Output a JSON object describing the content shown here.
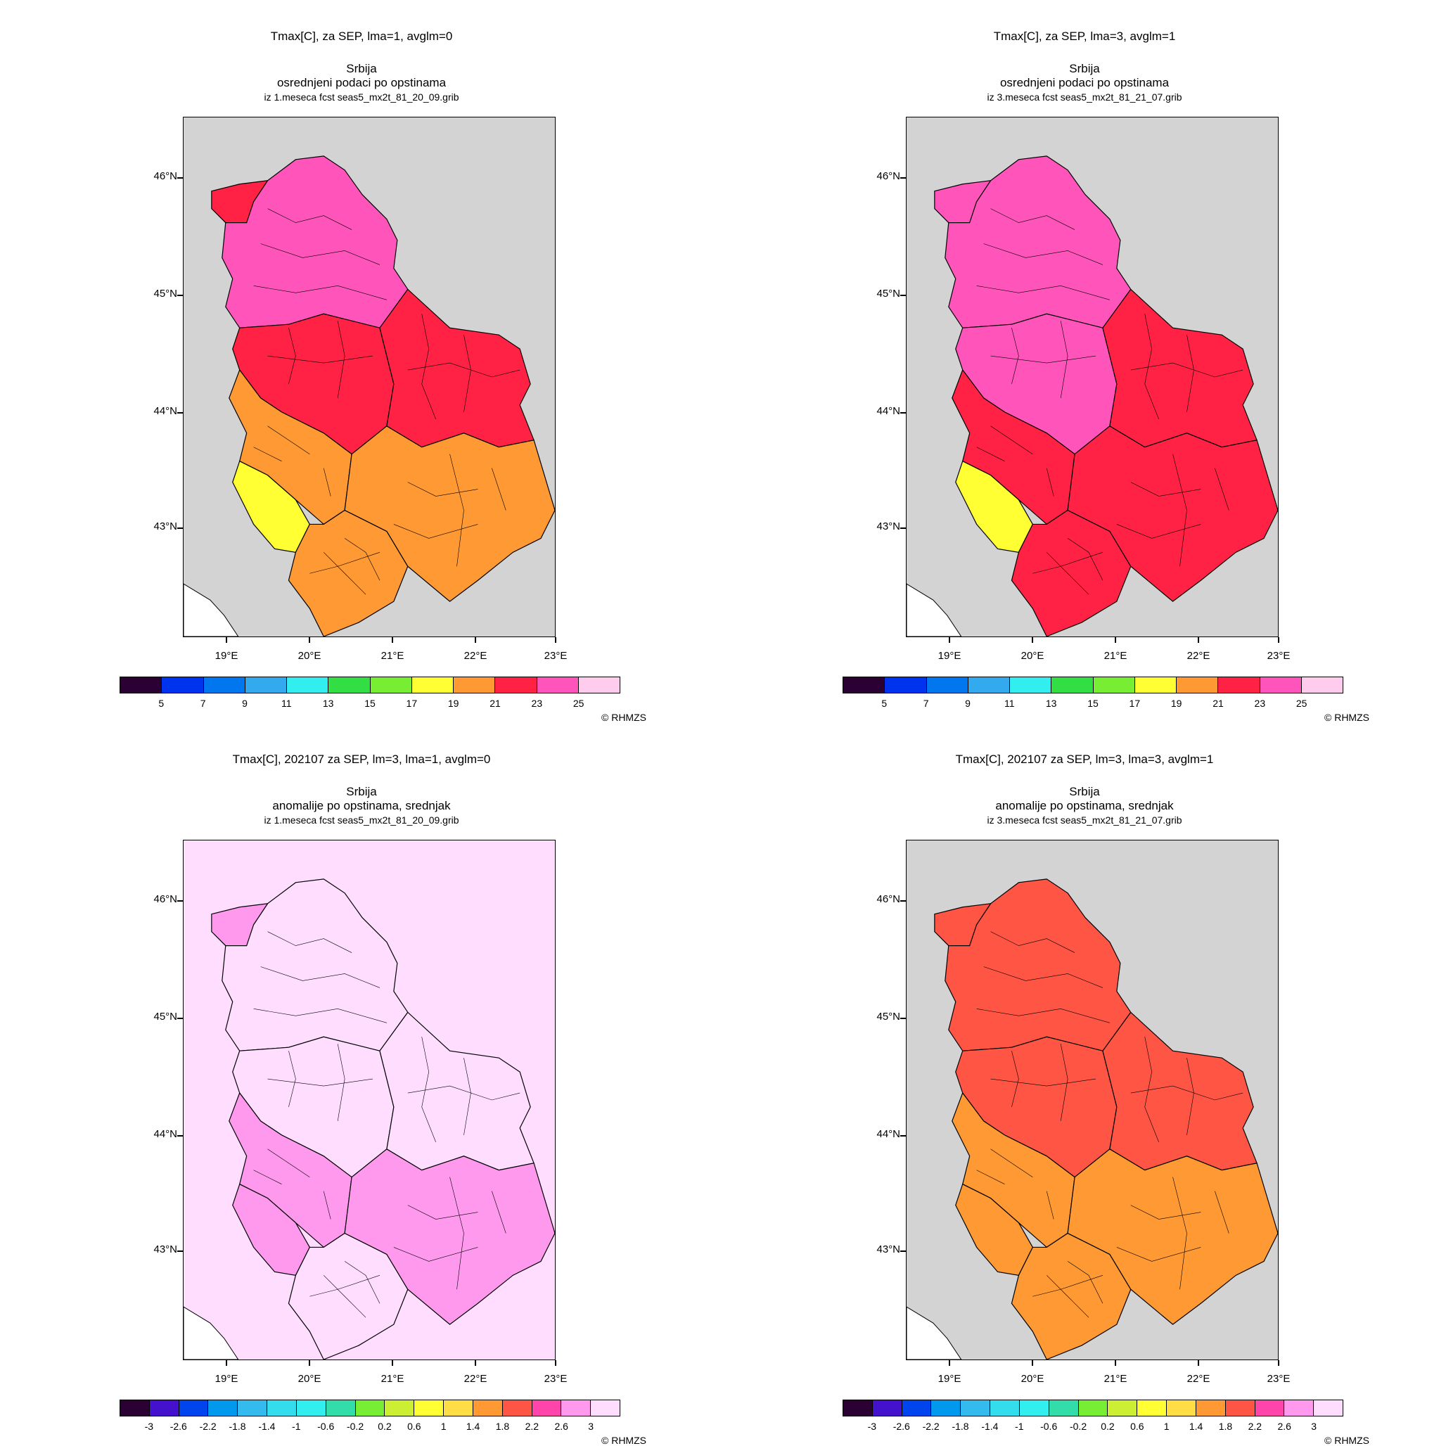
{
  "panels": [
    {
      "title_line1": "Tmax[C], za SEP, lma=1, avglm=0",
      "title_line2": "Srbija",
      "title_line3": "osrednjeni podaci po opstinama",
      "title_line4": "iz 1.meseca fcst seas5_mx2t_81_20_09.grib",
      "colorbar_labels": [
        "5",
        "7",
        "9",
        "11",
        "13",
        "15",
        "17",
        "19",
        "21",
        "23",
        "25"
      ],
      "colorbar_colors": [
        "#2b0033",
        "#0033ee",
        "#0077ee",
        "#33aaee",
        "#33eeee",
        "#33dd44",
        "#77ee33",
        "#ffff33",
        "#ff9933",
        "#ff2244",
        "#ff55bb",
        "#ffccee"
      ],
      "region_colors": {
        "north": "#ff55bb",
        "northwest": "#ff2244",
        "central": "#ff2244",
        "east": "#ff2244",
        "west": "#ff9933",
        "southwest": "#ffff33",
        "south": "#ff9933",
        "southeast": "#ff9933",
        "outside": "#d3d3d3"
      },
      "credit": "© RHMZS"
    },
    {
      "title_line1": "Tmax[C], za SEP, lma=3, avglm=1",
      "title_line2": "Srbija",
      "title_line3": "osrednjeni podaci po opstinama",
      "title_line4": "iz 3.meseca fcst seas5_mx2t_81_21_07.grib",
      "colorbar_labels": [
        "5",
        "7",
        "9",
        "11",
        "13",
        "15",
        "17",
        "19",
        "21",
        "23",
        "25"
      ],
      "colorbar_colors": [
        "#2b0033",
        "#0033ee",
        "#0077ee",
        "#33aaee",
        "#33eeee",
        "#33dd44",
        "#77ee33",
        "#ffff33",
        "#ff9933",
        "#ff2244",
        "#ff55bb",
        "#ffccee"
      ],
      "region_colors": {
        "north": "#ff55bb",
        "northwest": "#ff55bb",
        "central": "#ff55bb",
        "east": "#ff2244",
        "west": "#ff2244",
        "southwest": "#ffff33",
        "south": "#ff2244",
        "southeast": "#ff2244",
        "outside": "#d3d3d3"
      },
      "credit": "© RHMZS"
    },
    {
      "title_line1": "Tmax[C], 202107 za SEP, lm=3, lma=1, avglm=0",
      "title_line2": "Srbija",
      "title_line3": "anomalije po opstinama, srednjak",
      "title_line4": "iz 1.meseca fcst seas5_mx2t_81_20_09.grib",
      "colorbar_labels": [
        "-3",
        "-2.6",
        "-2.2",
        "-1.8",
        "-1.4",
        "-1",
        "-0.6",
        "-0.2",
        "0.2",
        "0.6",
        "1",
        "1.4",
        "1.8",
        "2.2",
        "2.6",
        "3"
      ],
      "colorbar_colors": [
        "#2b0033",
        "#4411cc",
        "#0044ee",
        "#0099ee",
        "#33bbee",
        "#33ddee",
        "#33eeee",
        "#33ddaa",
        "#77ee33",
        "#ccee33",
        "#ffff33",
        "#ffdd44",
        "#ff9933",
        "#ff5544",
        "#ff44aa",
        "#ff99ee",
        "#ffddff"
      ],
      "region_colors": {
        "north": "#ffddff",
        "northwest": "#ff99ee",
        "central": "#ffddff",
        "east": "#ffddff",
        "west": "#ff99ee",
        "southwest": "#ff99ee",
        "south": "#ffddff",
        "southeast": "#ff99ee",
        "outside": "#ffddff"
      },
      "credit": "© RHMZS"
    },
    {
      "title_line1": "Tmax[C], 202107 za SEP, lm=3, lma=3, avglm=1",
      "title_line2": "Srbija",
      "title_line3": "anomalije po opstinama, srednjak",
      "title_line4": "iz 3.meseca fcst seas5_mx2t_81_21_07.grib",
      "colorbar_labels": [
        "-3",
        "-2.6",
        "-2.2",
        "-1.8",
        "-1.4",
        "-1",
        "-0.6",
        "-0.2",
        "0.2",
        "0.6",
        "1",
        "1.4",
        "1.8",
        "2.2",
        "2.6",
        "3"
      ],
      "colorbar_colors": [
        "#2b0033",
        "#4411cc",
        "#0044ee",
        "#0099ee",
        "#33bbee",
        "#33ddee",
        "#33eeee",
        "#33ddaa",
        "#77ee33",
        "#ccee33",
        "#ffff33",
        "#ffdd44",
        "#ff9933",
        "#ff5544",
        "#ff44aa",
        "#ff99ee",
        "#ffddff"
      ],
      "region_colors": {
        "north": "#ff5544",
        "northwest": "#ff5544",
        "central": "#ff5544",
        "east": "#ff5544",
        "west": "#ff9933",
        "southwest": "#ff9933",
        "south": "#ff9933",
        "southeast": "#ff9933",
        "outside": "#d3d3d3"
      },
      "credit": "© RHMZS"
    }
  ],
  "axes": {
    "lon_labels": [
      "19°E",
      "20°E",
      "21°E",
      "22°E",
      "23°E"
    ],
    "lat_labels": [
      "46°N",
      "45°N",
      "44°N",
      "43°N"
    ]
  }
}
